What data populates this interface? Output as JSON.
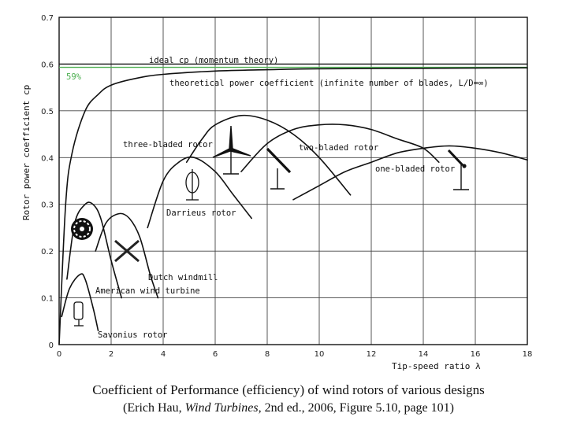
{
  "chart_data": {
    "type": "line",
    "title": "Coefficient of Performance (efficiency) of wind rotors of various designs",
    "citation": {
      "prefix": "(Erich Hau, ",
      "book": "Wind Turbines",
      "suffix": ", 2nd ed., 2006, Figure 5.10, page 101)"
    },
    "xlabel": "Tip-speed ratio λ",
    "ylabel": "Rotor power coefficient cp",
    "xlim": [
      0,
      18
    ],
    "ylim": [
      0,
      0.7
    ],
    "xticks": [
      0,
      2,
      4,
      6,
      8,
      10,
      12,
      14,
      16,
      18
    ],
    "yticks": [
      0,
      0.1,
      0.2,
      0.3,
      0.4,
      0.5,
      0.6,
      0.7
    ],
    "grid": true,
    "reference_lines": [
      {
        "name": "ideal cp (momentum theory)",
        "y": 0.6,
        "color": "#111111"
      },
      {
        "name": "59%",
        "y": 0.593,
        "color": "#4caf50"
      }
    ],
    "series": [
      {
        "name": "theoretical power coefficient (infinite number of blades, L/D=∞)",
        "x": [
          0,
          0.25,
          0.5,
          1,
          1.5,
          2,
          3,
          4,
          6,
          8,
          10,
          14,
          18
        ],
        "y": [
          0,
          0.3,
          0.41,
          0.5,
          0.535,
          0.555,
          0.57,
          0.578,
          0.585,
          0.588,
          0.59,
          0.591,
          0.592
        ]
      },
      {
        "name": "Savonius rotor",
        "x": [
          0.1,
          0.4,
          0.8,
          1.0,
          1.3,
          1.5
        ],
        "y": [
          0.06,
          0.12,
          0.15,
          0.14,
          0.08,
          0.03
        ]
      },
      {
        "name": "American wind turbine",
        "x": [
          0.3,
          0.6,
          1.0,
          1.3,
          1.6,
          2.0,
          2.4
        ],
        "y": [
          0.14,
          0.26,
          0.3,
          0.3,
          0.27,
          0.18,
          0.1
        ]
      },
      {
        "name": "Dutch windmill",
        "x": [
          1.4,
          1.8,
          2.3,
          2.7,
          3.1,
          3.5,
          3.8
        ],
        "y": [
          0.2,
          0.26,
          0.28,
          0.27,
          0.23,
          0.15,
          0.1
        ]
      },
      {
        "name": "Darrieus rotor",
        "x": [
          3.4,
          4.0,
          4.6,
          5.2,
          6.0,
          6.7,
          7.4
        ],
        "y": [
          0.25,
          0.35,
          0.39,
          0.4,
          0.37,
          0.32,
          0.27
        ]
      },
      {
        "name": "three-bladed rotor",
        "x": [
          4.9,
          5.5,
          6.0,
          7.0,
          8.0,
          9.0,
          10.0,
          11.2
        ],
        "y": [
          0.39,
          0.44,
          0.47,
          0.49,
          0.48,
          0.45,
          0.4,
          0.32
        ]
      },
      {
        "name": "two-bladed rotor",
        "x": [
          7.0,
          8.0,
          9.0,
          10.0,
          11.0,
          12.0,
          13.0,
          14.0,
          14.6
        ],
        "y": [
          0.37,
          0.43,
          0.46,
          0.47,
          0.47,
          0.46,
          0.44,
          0.42,
          0.39
        ]
      },
      {
        "name": "one-bladed rotor",
        "x": [
          9.0,
          10.0,
          11.0,
          12.0,
          13.0,
          14.0,
          15.0,
          16.0,
          17.0,
          18.0
        ],
        "y": [
          0.31,
          0.34,
          0.37,
          0.39,
          0.41,
          0.42,
          0.425,
          0.42,
          0.41,
          0.395
        ]
      }
    ],
    "annotations": [
      {
        "text": "ideal cp (momentum theory)",
        "x": 3.45,
        "y": 0.6
      },
      {
        "text": "59%",
        "x": 0.3,
        "y": 0.57
      },
      {
        "text": "theoretical power coefficient (infinite number of blades, L/D=∞)",
        "x": 4.2,
        "y": 0.55
      },
      {
        "text": "three-bladed rotor",
        "x": 2.4,
        "y": 0.42
      },
      {
        "text": "two-bladed rotor",
        "x": 9.2,
        "y": 0.415
      },
      {
        "text": "one-bladed rotor",
        "x": 12.2,
        "y": 0.375
      },
      {
        "text": "Darrieus rotor",
        "x": 4.1,
        "y": 0.27
      },
      {
        "text": "Dutch windmill",
        "x": 3.45,
        "y": 0.13
      },
      {
        "text": "American wind turbine",
        "x": 1.4,
        "y": 0.11
      },
      {
        "text": "Savonius rotor",
        "x": 1.45,
        "y": 0.015
      }
    ]
  }
}
